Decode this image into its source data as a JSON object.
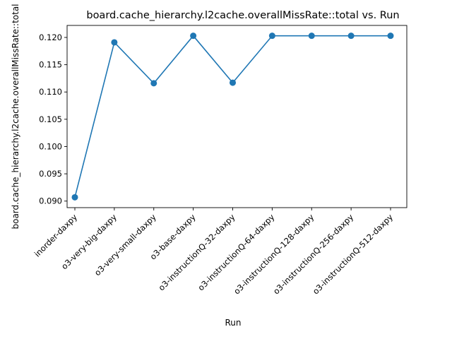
{
  "chart_data": {
    "type": "line",
    "title": "board.cache_hierarchy.l2cache.overallMissRate::total vs. Run",
    "xlabel": "Run",
    "ylabel": "board.cache_hierarchy.l2cache.overallMissRate::total",
    "categories": [
      "inorder-daxpy",
      "o3-very-big-daxpy",
      "o3-very-small-daxpy",
      "o3-base-daxpy",
      "o3-instructionQ-32-daxpy",
      "o3-instructionQ-64-daxpy",
      "o3-instructionQ-128-daxpy",
      "o3-instructionQ-256-daxpy",
      "o3-instructionQ-512-daxpy"
    ],
    "values": [
      0.0907,
      0.1191,
      0.1116,
      0.1203,
      0.1117,
      0.1203,
      0.1203,
      0.1203,
      0.1203
    ],
    "ylim": [
      0.0888,
      0.1222
    ],
    "yticks": [
      "0.090",
      "0.095",
      "0.100",
      "0.105",
      "0.110",
      "0.115",
      "0.120"
    ],
    "line_color": "#1f77b4",
    "grid": false,
    "markers": true
  }
}
